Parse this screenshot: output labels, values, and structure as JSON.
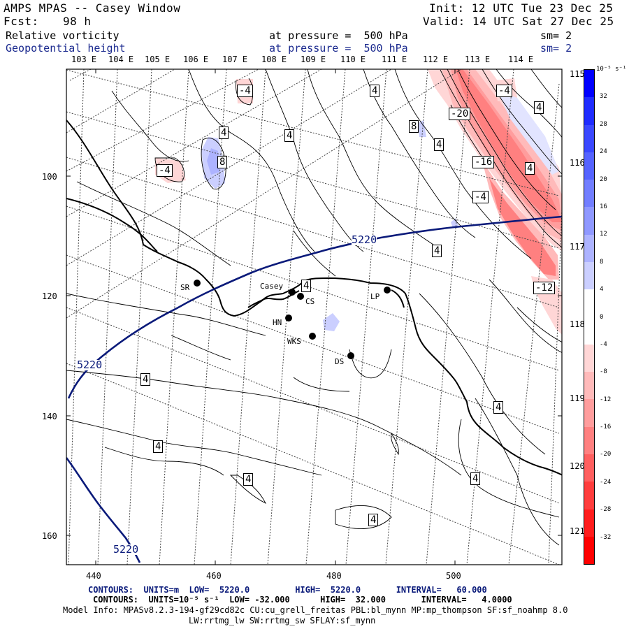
{
  "header": {
    "title": "AMPS MPAS -- Casey Window",
    "fcst_label": "Fcst:",
    "fcst_value": "98 h",
    "init": "Init: 12 UTC Tue 23 Dec 25",
    "valid": "Valid: 14 UTC Sat 27 Dec 25",
    "field1_name": "Relative vorticity",
    "field1_level": "at pressure =  500 hPa",
    "field1_sm": "sm= 2",
    "field2_name": "Geopotential height",
    "field2_level": "at pressure =  500 hPa",
    "field2_sm": "sm= 2"
  },
  "axes": {
    "top_lon_labels": [
      "103 E",
      "104 E",
      "105 E",
      "106 E",
      "107 E",
      "108 E",
      "109 E",
      "110 E",
      "111 E",
      "112 E",
      "113 E",
      "114 E"
    ],
    "right_lon_labels": [
      "115 E",
      "116 E",
      "117 E",
      "118 E",
      "119 E",
      "120 E",
      "121 E"
    ],
    "y_ticks": [
      "100",
      "120",
      "140",
      "160"
    ],
    "x_ticks": [
      "440",
      "460",
      "480",
      "500"
    ]
  },
  "colorbar": {
    "units": "10⁻⁵ s⁻¹",
    "ticks": [
      "32",
      "28",
      "24",
      "20",
      "16",
      "12",
      "8",
      "4",
      "0",
      "-4",
      "-8",
      "-12",
      "-16",
      "-20",
      "-24",
      "-28",
      "-32"
    ],
    "colors": [
      "#0000ff",
      "#1f2cff",
      "#3a48ff",
      "#5563ff",
      "#727eff",
      "#8f98ff",
      "#adb3ff",
      "#cbcfff",
      "#ffffff",
      "#ffffff",
      "#ffd6d6",
      "#ffbaba",
      "#ff9d9d",
      "#ff8080",
      "#ff5f5f",
      "#ff3d3d",
      "#ff1c1c",
      "#ff0000"
    ]
  },
  "stations": [
    {
      "id": "SR",
      "label": "SR"
    },
    {
      "id": "casey",
      "label": "Casey"
    },
    {
      "id": "cs",
      "label": "CS"
    },
    {
      "id": "hn",
      "label": "HN"
    },
    {
      "id": "wks",
      "label": "WKS"
    },
    {
      "id": "ds",
      "label": "DS"
    },
    {
      "id": "lp",
      "label": "LP"
    }
  ],
  "contour_labels": {
    "height": [
      "5220",
      "5220",
      "5220"
    ],
    "vort_pos": [
      "4",
      "4",
      "4",
      "4",
      "4",
      "4",
      "4",
      "4",
      "4",
      "4",
      "4",
      "4",
      "4",
      "8",
      "8"
    ],
    "vort_neg": [
      "-4",
      "-4",
      "-4",
      "-4",
      "-20",
      "-16",
      "-12"
    ]
  },
  "footer": {
    "line1": "CONTOURS:  UNITS=m  LOW=  5220.0         HIGH=  5220.0       INTERVAL=   60.000",
    "line2": "CONTOURS:  UNITS=10⁻⁵ s⁻¹  LOW= -32.000      HIGH=  32.000       INTERVAL=   4.0000",
    "line3": "Model Info: MPASv8.2.3-194-gf29cd82c CU:cu_grell_freitas PBL:bl_mynn MP:mp_thompson SF:sf_noahmp 8.0",
    "line4": "LW:rrtmg_lw SW:rrtmg_sw SFLAY:sf_mynn"
  }
}
